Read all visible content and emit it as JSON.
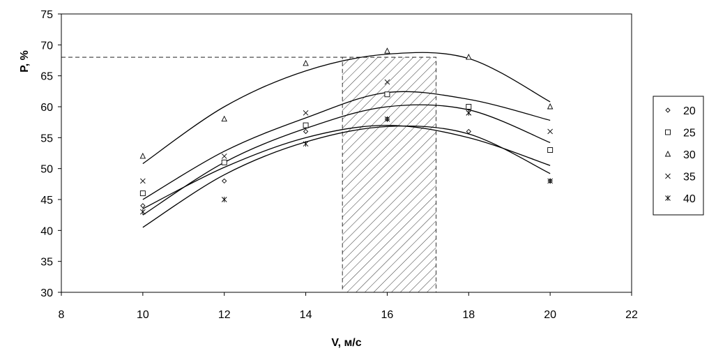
{
  "chart_data": {
    "type": "scatter",
    "xlabel": "V, м/с",
    "ylabel": "P, %",
    "xlim": [
      8,
      22
    ],
    "ylim": [
      30,
      75
    ],
    "xticks": [
      8,
      10,
      12,
      14,
      16,
      18,
      20,
      22
    ],
    "yticks": [
      30,
      35,
      40,
      45,
      50,
      55,
      60,
      65,
      70,
      75
    ],
    "grid": false,
    "legend_position": "right",
    "x": [
      10,
      12,
      14,
      16,
      18,
      20
    ],
    "series": [
      {
        "name": "20",
        "marker": "diamond",
        "values": [
          44,
          48,
          56,
          58,
          56,
          48
        ],
        "fit": [
          [
            10,
            40.5
          ],
          [
            12,
            49.0
          ],
          [
            14,
            54.3
          ],
          [
            16,
            56.8
          ],
          [
            18,
            55.6
          ],
          [
            20,
            49.2
          ]
        ]
      },
      {
        "name": "25",
        "marker": "square",
        "values": [
          46,
          51,
          57,
          62,
          60,
          53
        ],
        "fit": [
          [
            10,
            45.0
          ],
          [
            12,
            52.8
          ],
          [
            14,
            58.2
          ],
          [
            16,
            62.3
          ],
          [
            18,
            61.2
          ],
          [
            20,
            57.8
          ]
        ]
      },
      {
        "name": "30",
        "marker": "triangle",
        "values": [
          52,
          58,
          67,
          69,
          68,
          60
        ],
        "fit": [
          [
            10,
            50.8
          ],
          [
            12,
            60.0
          ],
          [
            14,
            65.8
          ],
          [
            16,
            68.5
          ],
          [
            18,
            67.8
          ],
          [
            20,
            60.8
          ]
        ]
      },
      {
        "name": "35",
        "marker": "x",
        "values": [
          48,
          52,
          59,
          64,
          59,
          56
        ],
        "fit": [
          [
            10,
            42.5
          ],
          [
            12,
            51.0
          ],
          [
            14,
            56.5
          ],
          [
            16,
            60.0
          ],
          [
            18,
            59.5
          ],
          [
            20,
            54.2
          ]
        ]
      },
      {
        "name": "40",
        "marker": "asterisk",
        "values": [
          43,
          45,
          54,
          58,
          59,
          48
        ],
        "fit": [
          [
            10,
            43.5
          ],
          [
            12,
            50.2
          ],
          [
            14,
            55.0
          ],
          [
            16,
            57.0
          ],
          [
            18,
            55.0
          ],
          [
            20,
            50.5
          ]
        ]
      }
    ],
    "annotations": {
      "hatched_region": {
        "x_range": [
          14.9,
          17.2
        ],
        "y_range": [
          30,
          68
        ]
      },
      "reference_line": {
        "y": 68,
        "x_end": 14.9
      }
    }
  }
}
